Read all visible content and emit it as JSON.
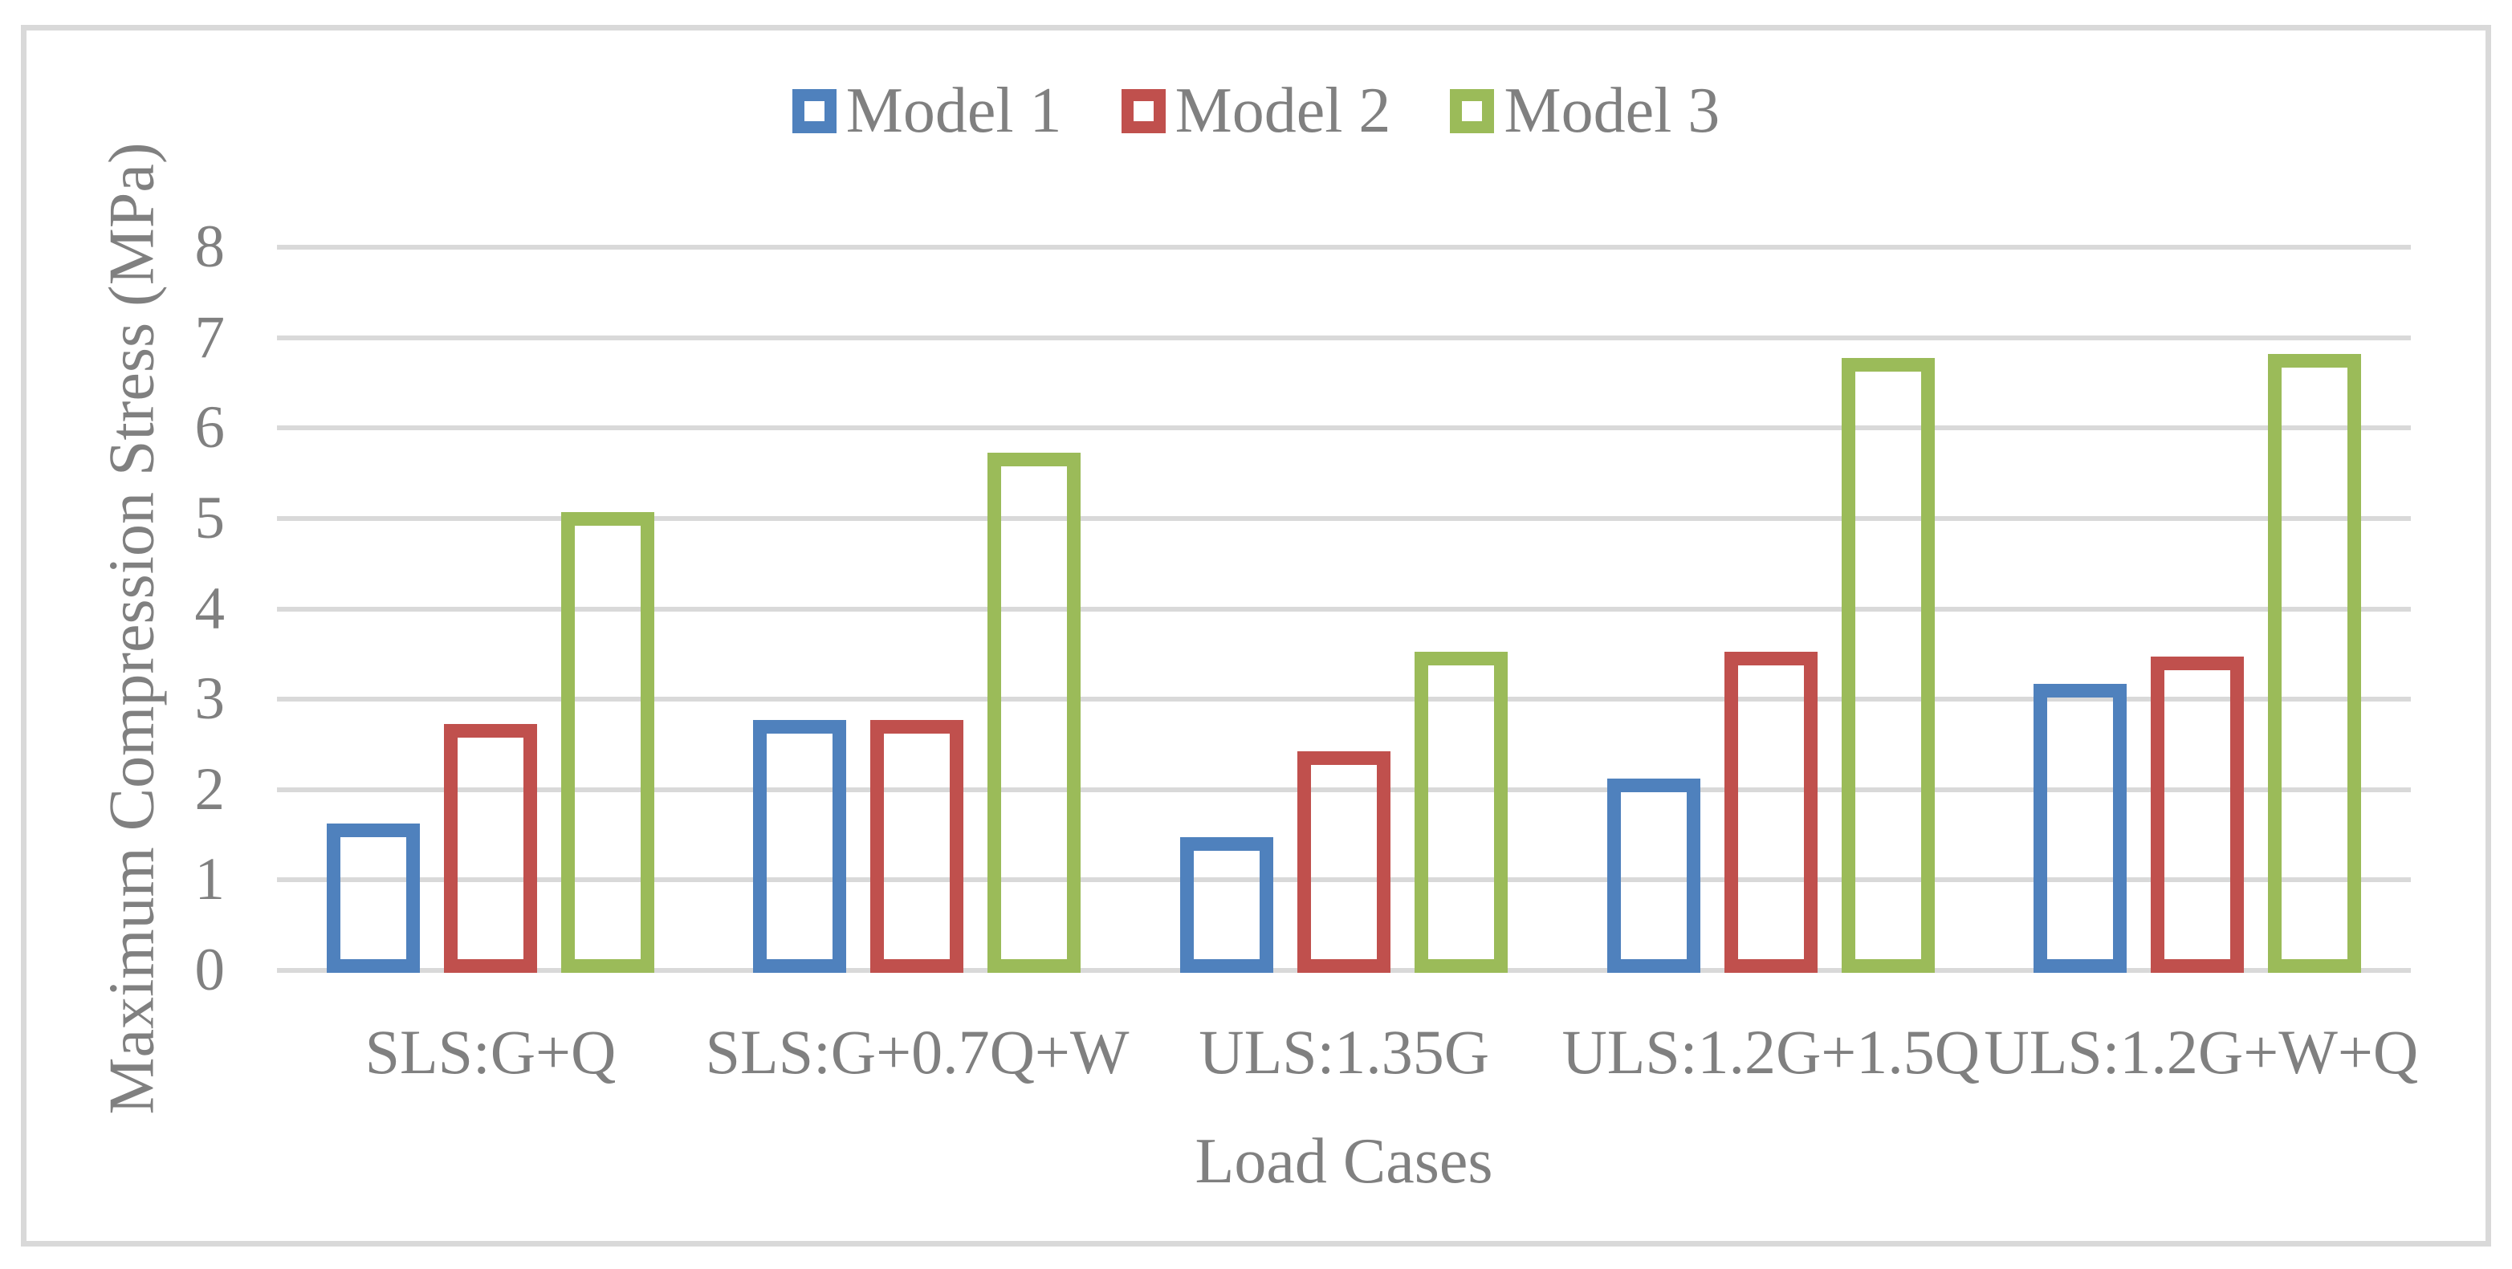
{
  "chart_data": {
    "type": "bar",
    "title": "",
    "categories": [
      "SLS:G+Q",
      "SLS:G+0.7Q+W",
      "ULS:1.35G",
      "ULS:1.2G+1.5Q",
      "ULS:1.2G+W+Q"
    ],
    "series": [
      {
        "name": "Model 1",
        "color": "#4F81BD",
        "values": [
          1.65,
          2.8,
          1.5,
          2.15,
          3.2
        ]
      },
      {
        "name": "Model 2",
        "color": "#C0504D",
        "values": [
          2.75,
          2.8,
          2.45,
          3.55,
          3.5
        ]
      },
      {
        "name": "Model 3",
        "color": "#9BBB59",
        "values": [
          5.1,
          5.75,
          3.55,
          6.8,
          6.85
        ]
      }
    ],
    "xlabel": "Load Cases",
    "ylabel": "Maximum Compression Stress (MPa)",
    "ylim": [
      0,
      8
    ],
    "ytick_step": 1,
    "yticks": [
      "0",
      "1",
      "2",
      "3",
      "4",
      "5",
      "6",
      "7",
      "8"
    ],
    "grid": true,
    "legend_position": "top",
    "bar_style": "hollow-outline",
    "gridline_color": "#D9D9D9",
    "text_color": "#808080",
    "frame_color": "#D9D9D9"
  }
}
